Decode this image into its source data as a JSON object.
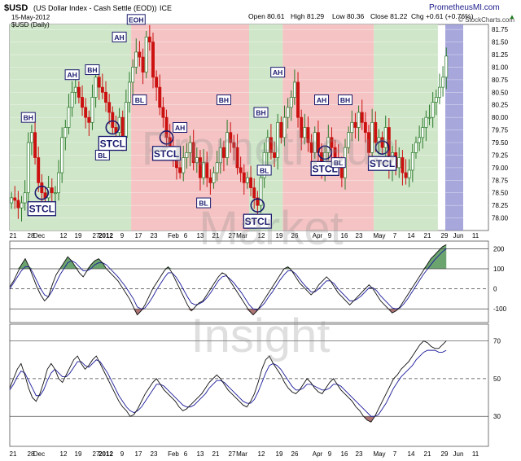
{
  "header": {
    "symbol": "$USD",
    "name": "(US Dollar Index - Cash Settle (EOD))",
    "exchange": "ICE",
    "brand": "PrometheusMI.com",
    "source": "© StockCharts.com",
    "date": "15-May-2012",
    "open": "Open 80.61",
    "high": "High 81.29",
    "low": "Low 80.36",
    "close": "Close 81.22",
    "change": "Chg +0.61 (+0.76%)",
    "change_arrow": "▲",
    "period_label": "$USD (Daily)"
  },
  "watermark": [
    "Prometheus",
    "Market",
    "Insight"
  ],
  "colors": {
    "green_zone": "#cfe6c9",
    "red_zone": "#f5c3c3",
    "projection_band": "#8a8ad0",
    "up_candle": "#2a7a2a",
    "down_candle": "#cc1010",
    "label_border": "#1a1a6e",
    "osc_blue": "#1a1a9a",
    "osc_black": "#111111",
    "fill_green": "#2e7d32",
    "fill_red": "#8b3a3a"
  },
  "chart_data": [
    {
      "type": "candlestick",
      "title": "$USD (Daily)",
      "ylim": [
        77.75,
        81.85
      ],
      "y_ticks": [
        "81.75",
        "81.50",
        "81.25",
        "81.00",
        "80.75",
        "80.50",
        "80.25",
        "80.00",
        "79.75",
        "79.50",
        "79.25",
        "79.00",
        "78.75",
        "78.50",
        "78.25",
        "78.00"
      ],
      "x_ticks": [
        "21",
        "28",
        "Dec",
        "12",
        "19",
        "27",
        "2012",
        "9",
        "17",
        "23",
        "Feb",
        "6",
        "13",
        "21",
        "27",
        "Mar",
        "12",
        "19",
        "26",
        "Apr",
        "9",
        "16",
        "23",
        "May",
        "7",
        "14",
        "21",
        "29",
        "Jun",
        "11"
      ],
      "closes": [
        78.4,
        78.35,
        78.2,
        78.3,
        78.5,
        79.5,
        79.7,
        79.2,
        78.7,
        78.5,
        78.4,
        78.6,
        78.5,
        78.5,
        78.9,
        79.6,
        79.8,
        80.2,
        80.5,
        80.6,
        80.4,
        80.2,
        80.0,
        79.9,
        80.4,
        80.8,
        80.6,
        80.5,
        80.3,
        80.1,
        79.8,
        79.7,
        80.0,
        79.6,
        80.3,
        80.7,
        81.0,
        81.3,
        81.2,
        80.9,
        81.6,
        81.5,
        80.8,
        80.6,
        80.2,
        80.0,
        79.6,
        79.4,
        79.2,
        79.0,
        78.9,
        79.2,
        79.3,
        79.5,
        79.1,
        79.2,
        78.8,
        79.1,
        78.8,
        78.7,
        78.9,
        79.1,
        79.4,
        79.2,
        79.7,
        79.5,
        79.4,
        79.0,
        78.9,
        78.7,
        78.8,
        78.6,
        78.4,
        78.25,
        78.8,
        79.3,
        79.6,
        79.3,
        79.2,
        79.9,
        79.6,
        80.0,
        80.2,
        80.4,
        80.7,
        80.0,
        79.6,
        79.8,
        79.5,
        79.3,
        79.7,
        79.3,
        79.0,
        79.3,
        79.6,
        79.4,
        79.2,
        79.0,
        78.8,
        79.4,
        79.7,
        79.9,
        79.8,
        80.1,
        79.9,
        79.7,
        79.3,
        79.9,
        79.5,
        79.6,
        79.4,
        79.8,
        79.0,
        79.3,
        79.0,
        79.2,
        78.9,
        78.8,
        78.95,
        79.3,
        79.5,
        79.6,
        79.8,
        80.0,
        80.0,
        80.3,
        80.4,
        80.6,
        80.8,
        81.22
      ],
      "zones": [
        {
          "type": "green",
          "from": 0,
          "to": 36
        },
        {
          "type": "red",
          "from": 36,
          "to": 71
        },
        {
          "type": "green",
          "from": 71,
          "to": 81
        },
        {
          "type": "red",
          "from": 81,
          "to": 108
        },
        {
          "type": "green",
          "from": 108,
          "to": 127
        }
      ],
      "annotations": [
        {
          "label": "BH",
          "bar": 5,
          "value": 80.0
        },
        {
          "label": "STCL",
          "bar": 9,
          "value": 78.1,
          "circle": true
        },
        {
          "label": "AH",
          "bar": 18,
          "value": 80.85
        },
        {
          "label": "BH",
          "bar": 24,
          "value": 80.95
        },
        {
          "label": "BL",
          "bar": 27,
          "value": 79.25
        },
        {
          "label": "STCL",
          "bar": 30,
          "value": 79.55,
          "circle": true
        },
        {
          "label": "AH",
          "bar": 32,
          "value": 81.6
        },
        {
          "label": "EOH",
          "bar": 37,
          "value": 81.95
        },
        {
          "label": "BL",
          "bar": 38,
          "value": 80.35
        },
        {
          "label": "STCL",
          "bar": 46,
          "value": 78.85,
          "circle": true
        },
        {
          "label": "AH",
          "bar": 50,
          "value": 79.8
        },
        {
          "label": "BL",
          "bar": 57,
          "value": 78.3
        },
        {
          "label": "BH",
          "bar": 63,
          "value": 80.35
        },
        {
          "label": "STCL",
          "bar": 73,
          "value": 78.1,
          "circle": true
        },
        {
          "label": "BH",
          "bar": 74,
          "value": 80.1
        },
        {
          "label": "BL",
          "bar": 75,
          "value": 78.95
        },
        {
          "label": "AH",
          "bar": 79,
          "value": 80.9
        },
        {
          "label": "AH",
          "bar": 92,
          "value": 80.35
        },
        {
          "label": "STCL",
          "bar": 93,
          "value": 78.7,
          "circle": true
        },
        {
          "label": "BH",
          "bar": 99,
          "value": 80.35
        },
        {
          "label": "BL",
          "bar": 97,
          "value": 79.1
        },
        {
          "label": "STCL",
          "bar": 110,
          "value": 78.65,
          "circle": true
        }
      ]
    },
    {
      "type": "line",
      "title": "",
      "ylim": [
        -160,
        230
      ],
      "y_ticks": [
        "200",
        "100",
        "0",
        "-100"
      ],
      "series": [
        {
          "values": [
            10,
            40,
            80,
            120,
            150,
            110,
            60,
            10,
            -30,
            -60,
            -40,
            20,
            70,
            100,
            130,
            160,
            140,
            110,
            80,
            60,
            90,
            120,
            140,
            150,
            130,
            100,
            80,
            60,
            40,
            10,
            -20,
            -50,
            -90,
            -130,
            -110,
            -80,
            -40,
            0,
            30,
            60,
            90,
            110,
            80,
            40,
            0,
            -40,
            -80,
            -110,
            -90,
            -70,
            -60,
            -30,
            0,
            30,
            60,
            80,
            70,
            40,
            10,
            -20,
            -50,
            -80,
            -110,
            -130,
            -110,
            -80,
            -50,
            -20,
            10,
            40,
            70,
            100,
            110,
            90,
            60,
            30,
            10,
            -10,
            -30,
            -10,
            20,
            40,
            60,
            40,
            10,
            -20,
            -40,
            -60,
            -80,
            -60,
            -40,
            -20,
            0,
            20,
            0,
            -30,
            -60,
            -80,
            -100,
            -120,
            -110,
            -90,
            -60,
            -30,
            0,
            30,
            60,
            90,
            120,
            150,
            170,
            190,
            210,
            220
          ]
        },
        {
          "values": [
            0,
            30,
            60,
            90,
            110,
            110,
            80,
            40,
            0,
            -30,
            -40,
            -10,
            30,
            70,
            100,
            130,
            140,
            130,
            110,
            90,
            90,
            100,
            120,
            130,
            130,
            120,
            100,
            80,
            60,
            35,
            10,
            -20,
            -50,
            -90,
            -100,
            -95,
            -70,
            -40,
            -5,
            25,
            55,
            80,
            80,
            60,
            30,
            -5,
            -40,
            -70,
            -80,
            -75,
            -65,
            -45,
            -20,
            10,
            40,
            60,
            65,
            50,
            30,
            5,
            -20,
            -50,
            -80,
            -100,
            -105,
            -90,
            -70,
            -40,
            -15,
            15,
            45,
            70,
            90,
            90,
            75,
            50,
            25,
            5,
            -15,
            -15,
            0,
            20,
            40,
            40,
            25,
            0,
            -20,
            -40,
            -60,
            -60,
            -50,
            -35,
            -15,
            5,
            5,
            -10,
            -35,
            -55,
            -75,
            -95,
            -100,
            -95,
            -75,
            -50,
            -20,
            10,
            40,
            70,
            95,
            120,
            145,
            165,
            185,
            200
          ]
        }
      ]
    },
    {
      "type": "line",
      "title": "",
      "ylim": [
        15,
        78
      ],
      "y_ticks": [
        "70",
        "50",
        "30"
      ],
      "series": [
        {
          "values": [
            45,
            50,
            55,
            58,
            52,
            45,
            40,
            38,
            42,
            48,
            55,
            58,
            55,
            50,
            48,
            52,
            56,
            60,
            62,
            58,
            55,
            57,
            60,
            62,
            58,
            54,
            50,
            46,
            42,
            38,
            35,
            33,
            30,
            31,
            34,
            38,
            42,
            45,
            48,
            50,
            47,
            44,
            42,
            40,
            38,
            35,
            33,
            34,
            36,
            38,
            40,
            42,
            45,
            48,
            50,
            52,
            50,
            47,
            44,
            42,
            40,
            38,
            36,
            35,
            38,
            42,
            48,
            55,
            60,
            62,
            58,
            55,
            52,
            48,
            45,
            43,
            42,
            44,
            47,
            50,
            48,
            45,
            43,
            42,
            45,
            48,
            50,
            47,
            44,
            42,
            40,
            38,
            35,
            33,
            30,
            28,
            27,
            30,
            34,
            38,
            42,
            46,
            50,
            52,
            55,
            57,
            59,
            62,
            65,
            68,
            70,
            69,
            67,
            66,
            66,
            68,
            70
          ]
        },
        {
          "values": [
            44,
            47,
            51,
            54,
            53,
            49,
            45,
            41,
            41,
            44,
            49,
            53,
            55,
            53,
            51,
            51,
            53,
            56,
            59,
            59,
            57,
            56,
            58,
            60,
            59,
            56,
            53,
            49,
            45,
            41,
            38,
            35,
            33,
            32,
            33,
            35,
            38,
            41,
            44,
            47,
            47,
            46,
            44,
            42,
            40,
            38,
            36,
            35,
            35,
            36,
            38,
            40,
            42,
            45,
            47,
            49,
            49,
            48,
            46,
            44,
            42,
            40,
            38,
            37,
            37,
            39,
            43,
            48,
            53,
            57,
            58,
            57,
            55,
            52,
            49,
            46,
            44,
            44,
            45,
            47,
            47,
            46,
            45,
            44,
            44,
            45,
            47,
            47,
            46,
            44,
            42,
            40,
            38,
            36,
            34,
            32,
            30,
            30,
            31,
            34,
            37,
            41,
            45,
            48,
            51,
            53,
            55,
            57,
            60,
            62,
            64,
            65,
            65,
            65,
            64,
            64,
            65
          ]
        }
      ]
    }
  ]
}
